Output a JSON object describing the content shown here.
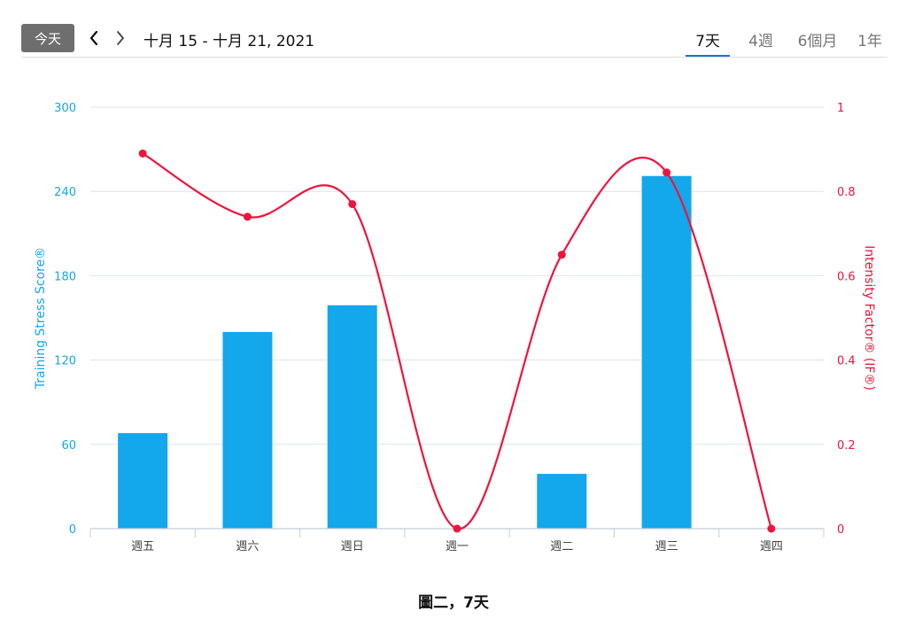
{
  "toolbar": {
    "today_label": "今天",
    "prev_icon": "chevron-left-icon",
    "next_icon": "chevron-right-icon",
    "date_range": "十月 15 - 十月 21, 2021",
    "tabs": [
      {
        "label": "7天",
        "active": true
      },
      {
        "label": "4週",
        "active": false
      },
      {
        "label": "6個月",
        "active": false
      },
      {
        "label": "1年",
        "active": false
      }
    ],
    "accent_color": "#1b76d2"
  },
  "chart_data": {
    "type": "bar",
    "categories": [
      "週五",
      "週六",
      "週日",
      "週一",
      "週二",
      "週三",
      "週四"
    ],
    "series": [
      {
        "name": "Training Stress Score®",
        "type": "bar",
        "axis": "left",
        "color": "#13a7ec",
        "values": [
          68,
          140,
          159,
          0,
          39,
          251,
          0
        ]
      },
      {
        "name": "Intensity Factor® (IF®)",
        "type": "line",
        "axis": "right",
        "color": "#f0143c",
        "smooth": true,
        "values": [
          0.89,
          0.74,
          0.77,
          0.0,
          0.65,
          0.845,
          0.0
        ]
      }
    ],
    "y_left": {
      "label": "Training Stress Score®",
      "ticks": [
        "0",
        "60",
        "120",
        "180",
        "240",
        "300"
      ],
      "ylim": [
        0,
        300
      ],
      "color": "#13a7ec"
    },
    "y_right": {
      "label": "Intensity Factor® (IF®)",
      "ticks": [
        "0",
        "0.2",
        "0.4",
        "0.6",
        "0.8",
        "1"
      ],
      "ylim": [
        0,
        1
      ],
      "color": "#f0143c"
    },
    "grid": true
  },
  "caption": "圖二，7天"
}
